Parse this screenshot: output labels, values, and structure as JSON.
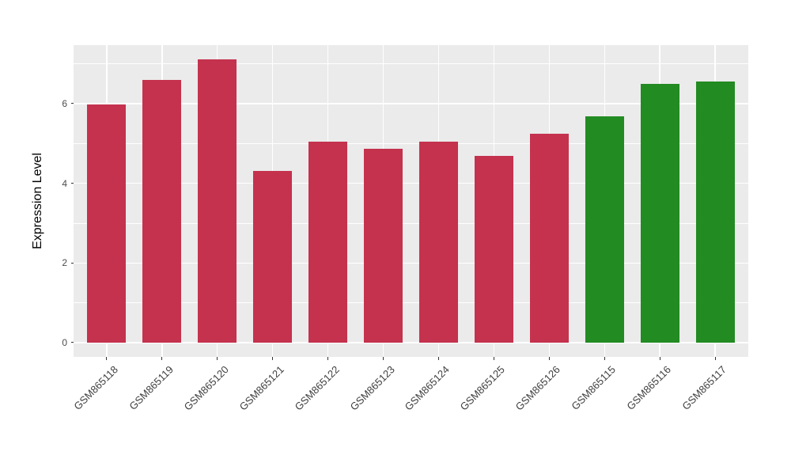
{
  "chart_data": {
    "type": "bar",
    "title": "",
    "xlabel": "",
    "ylabel": "Expression Level",
    "categories": [
      "GSM865118",
      "GSM865119",
      "GSM865120",
      "GSM865121",
      "GSM865122",
      "GSM865123",
      "GSM865124",
      "GSM865125",
      "GSM865126",
      "GSM865115",
      "GSM865116",
      "GSM865117"
    ],
    "values": [
      5.98,
      6.59,
      7.11,
      4.31,
      5.05,
      4.86,
      5.05,
      4.68,
      5.24,
      5.68,
      6.5,
      6.56
    ],
    "bar_colors": [
      "#C4324E",
      "#C4324E",
      "#C4324E",
      "#C4324E",
      "#C4324E",
      "#C4324E",
      "#C4324E",
      "#C4324E",
      "#C4324E",
      "#228B22",
      "#228B22",
      "#228B22"
    ],
    "group_colors": {
      "red_group": "#C4324E",
      "green_group": "#228B22"
    },
    "y_ticks": [
      0,
      2,
      4,
      6
    ],
    "y_minor_ticks": [
      1,
      3,
      5,
      7
    ],
    "ylim": [
      -0.36,
      7.47
    ],
    "bar_width_fraction": 0.7,
    "x_label_rotation_deg": -45,
    "legend_position": "none",
    "grid": true,
    "panel_background": "#EBEBEB",
    "gridline_color": "#FFFFFF",
    "axis_text_color": "#4D4D4D",
    "axis_title_color": "#000000",
    "tick_color": "#333333"
  }
}
